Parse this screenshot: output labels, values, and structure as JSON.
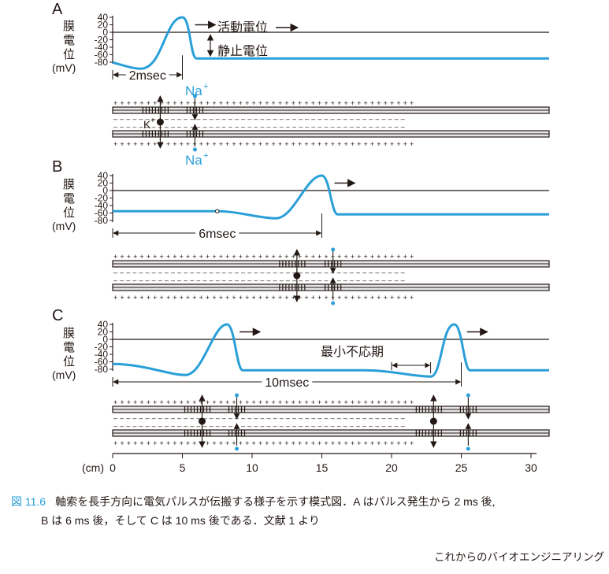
{
  "panels": [
    {
      "letter": "A",
      "ylabel": [
        "膜",
        "電",
        "位",
        "(mV)"
      ],
      "yticks": [
        "40",
        "20",
        "0",
        "-20",
        "-40",
        "-60",
        "-80"
      ],
      "interval_label": "2msec",
      "action_potential_label": "活動電位",
      "resting_potential_label": "静止電位",
      "sodium_label": "Na",
      "potassium_label": "K",
      "ion_superscript": "+"
    },
    {
      "letter": "B",
      "ylabel": [
        "膜",
        "電",
        "位",
        "(mV)"
      ],
      "yticks": [
        "40",
        "20",
        "0",
        "-20",
        "-40",
        "-60",
        "-80"
      ],
      "interval_label": "6msec"
    },
    {
      "letter": "C",
      "ylabel": [
        "膜",
        "電",
        "位",
        "(mV)"
      ],
      "yticks": [
        "40",
        "20",
        "0",
        "-20",
        "-40",
        "-60",
        "-80"
      ],
      "interval_label": "10msec",
      "refractory_label": "最小不応期"
    }
  ],
  "distance_axis": {
    "unit_label": "(cm)",
    "ticks": [
      "0",
      "5",
      "10",
      "15",
      "20",
      "25",
      "30"
    ]
  },
  "caption": {
    "figure_number": "図 11.6",
    "line1": "軸索を長手方向に電気パルスが伝搬する様子を示す模式図．A はパルス発生から 2 ms 後,",
    "line2": "B は 6 ms 後，そして C は 10 ms 後である．文献 1 より"
  },
  "credit": "これからのバイオエンジニアリング",
  "colors": {
    "trace": "#2a9fd8",
    "ink": "#231815",
    "sodium": "#2a9fd8",
    "membrane_fill": "#e6e6e6"
  }
}
